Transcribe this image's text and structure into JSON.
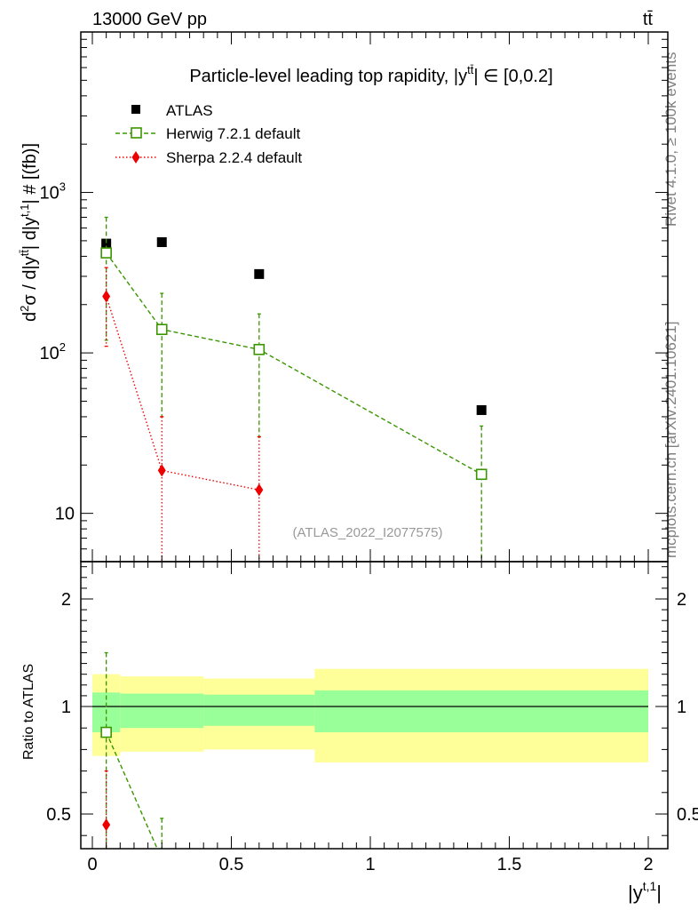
{
  "header": {
    "energy": "13000 GeV pp",
    "process": "tt̄"
  },
  "side_text": {
    "rivet": "Rivet 4.1.0, ≥ 100k events",
    "source": "mcplots.cern.ch [arXiv:2401.10621]"
  },
  "chart_data": {
    "type": "scatter",
    "title": "Particle-level leading top rapidity, |y̅tt̄| ∈ [0,0.2]",
    "title_prefix": "Particle-level leading top rapidity, |y",
    "title_sup": "tt̄",
    "title_suffix": "| ∈ [0,0.2]",
    "analysis_id": "(ATLAS_2022_I2077575)",
    "xlabel": "|y",
    "xlabel_sup": "t,1",
    "xlabel_suffix": "|",
    "ylabel": "d²σ / d|y^{t̅t}| d|y^{t,1}| # [(fb)]",
    "ylabel_ratio": "Ratio to ATLAS",
    "xlim": [
      -0.05,
      2.05
    ],
    "ylim": [
      5,
      10000
    ],
    "ratio_ylim": [
      0.4,
      2.4
    ],
    "yscale": "log",
    "xticks": [
      0,
      0.5,
      1,
      1.5,
      2
    ],
    "xtick_labels": [
      "0",
      "0.5",
      "1",
      "1.5",
      "2"
    ],
    "ytick_major": [
      10,
      100,
      1000
    ],
    "ytick_labels": [
      "10",
      "10",
      "10"
    ],
    "ytick_label_sup": [
      "",
      "2",
      "3"
    ],
    "ratio_ticks": [
      0.5,
      1,
      2
    ],
    "ratio_tick_labels": [
      "0.5",
      "1",
      "2"
    ],
    "bins": [
      [
        0,
        0.1
      ],
      [
        0.1,
        0.4
      ],
      [
        0.4,
        0.8
      ],
      [
        0.8,
        2.0
      ]
    ],
    "series": [
      {
        "name": "ATLAS",
        "color": "#000000",
        "marker": "square",
        "x": [
          0.05,
          0.25,
          0.6,
          1.4
        ],
        "y": [
          480,
          490,
          310,
          44
        ]
      },
      {
        "name": "Herwig 7.2.1 default",
        "color": "#3a9600",
        "marker": "open-square",
        "line": "dashed",
        "x": [
          0.05,
          0.25,
          0.6,
          1.4
        ],
        "y": [
          420,
          140,
          105,
          17.5
        ],
        "y_low": [
          120,
          40,
          30,
          5
        ],
        "y_high": [
          700,
          235,
          175,
          35
        ]
      },
      {
        "name": "Sherpa 2.2.4 default",
        "color": "#ee0000",
        "marker": "diamond",
        "line": "dotted",
        "x": [
          0.05,
          0.25,
          0.6
        ],
        "y": [
          225,
          18.5,
          14
        ],
        "y_low": [
          110,
          5,
          5
        ],
        "y_high": [
          340,
          40,
          30
        ]
      }
    ],
    "ratio_bands": {
      "inner_color": "#99ff99",
      "outer_color": "#ffff99",
      "inner": [
        [
          0.88,
          1.13
        ],
        [
          0.9,
          1.12
        ],
        [
          0.91,
          1.11
        ],
        [
          0.88,
          1.15
        ]
      ],
      "outer": [
        [
          0.77,
          1.3
        ],
        [
          0.79,
          1.28
        ],
        [
          0.8,
          1.26
        ],
        [
          0.74,
          1.35
        ]
      ]
    },
    "ratio_series": [
      {
        "name": "Herwig 7.2.1 default",
        "color": "#3a9600",
        "marker": "open-square",
        "line": "dashed",
        "x": [
          0.05,
          0.25
        ],
        "y": [
          0.88,
          0.29
        ],
        "y_low": [
          0.25,
          0.05
        ],
        "y_high": [
          1.5,
          0.48
        ]
      },
      {
        "name": "Sherpa 2.2.4 default",
        "color": "#ee0000",
        "marker": "diamond",
        "line": "dotted",
        "x": [
          0.05
        ],
        "y": [
          0.45
        ],
        "y_low": [
          0.2
        ],
        "y_high": [
          0.7
        ]
      }
    ]
  }
}
